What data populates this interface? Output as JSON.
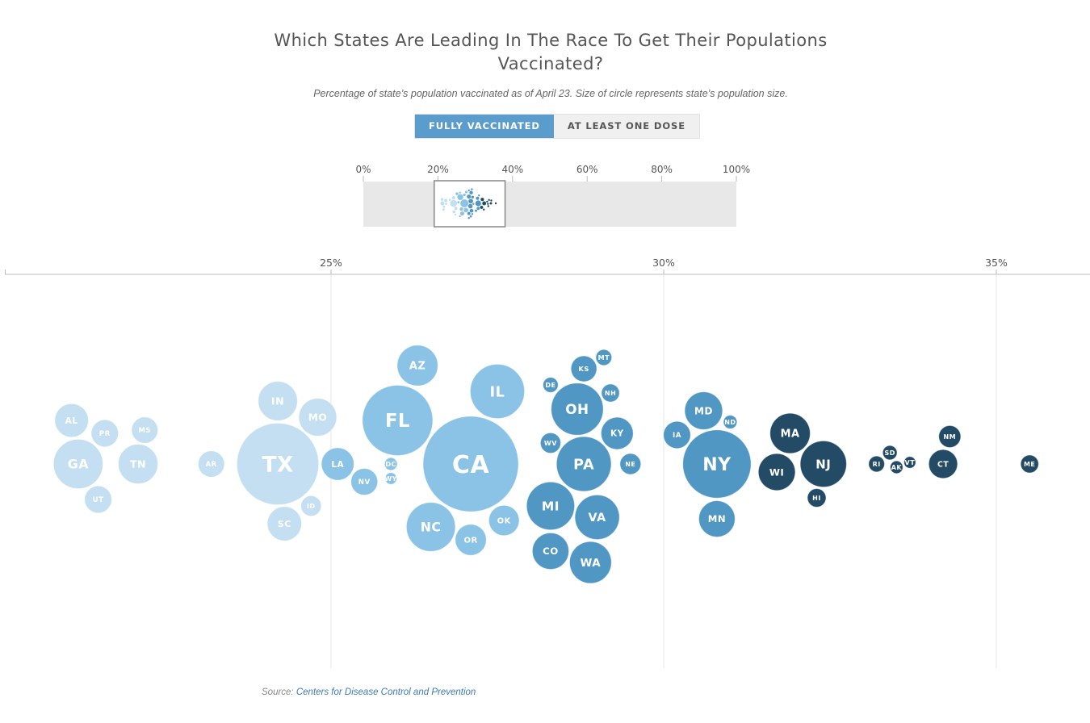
{
  "title": "Which States Are Leading In The Race To Get Their Populations Vaccinated?",
  "subtitle": "Percentage of state’s population vaccinated as of April 23. Size of circle represents state’s population size.",
  "toggle": {
    "active_label": "FULLY VACCINATED",
    "inactive_label": "AT LEAST ONE DOSE"
  },
  "source": {
    "label": "Source:",
    "link_text": "Centers for Disease Control and Prevention"
  },
  "colors": {
    "light": "#c3dff1",
    "medium": "#8bc3e6",
    "dark": "#5197c4",
    "darkest": "#244b66",
    "brush_bg": "#e8e8e8",
    "axis": "#bbbbbb",
    "grid": "#e6e6e6"
  },
  "overview_axis": {
    "ticks": [
      "0%",
      "20%",
      "40%",
      "60%",
      "80%",
      "100%"
    ],
    "brush_range": [
      19,
      38
    ]
  },
  "chart_data": {
    "type": "scatter",
    "x_axis": {
      "range": [
        20.1,
        36.4
      ],
      "ticks": [
        25,
        30,
        35
      ],
      "tick_labels": [
        "25%",
        "30%",
        "35%"
      ]
    },
    "points": [
      {
        "state": "GA",
        "value": 21.2,
        "pop": 10.6
      },
      {
        "state": "MS",
        "value": 22.2,
        "pop": 3.0
      },
      {
        "state": "AL",
        "value": 21.1,
        "pop": 4.9
      },
      {
        "state": "PR",
        "value": 21.6,
        "pop": 3.2
      },
      {
        "state": "TN",
        "value": 22.1,
        "pop": 6.8
      },
      {
        "state": "UT",
        "value": 21.5,
        "pop": 3.2
      },
      {
        "state": "AR",
        "value": 23.2,
        "pop": 3.0
      },
      {
        "state": "TX",
        "value": 24.2,
        "pop": 29.0
      },
      {
        "state": "ID",
        "value": 24.7,
        "pop": 1.8
      },
      {
        "state": "SC",
        "value": 24.3,
        "pop": 5.1
      },
      {
        "state": "IN",
        "value": 24.2,
        "pop": 6.7
      },
      {
        "state": "MO",
        "value": 24.8,
        "pop": 6.2
      },
      {
        "state": "LA",
        "value": 25.1,
        "pop": 4.6
      },
      {
        "state": "NV",
        "value": 25.5,
        "pop": 3.1
      },
      {
        "state": "WY",
        "value": 25.9,
        "pop": 0.6
      },
      {
        "state": "DC",
        "value": 25.9,
        "pop": 0.7
      },
      {
        "state": "FL",
        "value": 26.0,
        "pop": 21.5
      },
      {
        "state": "CA",
        "value": 27.1,
        "pop": 39.5
      },
      {
        "state": "AZ",
        "value": 26.3,
        "pop": 7.2
      },
      {
        "state": "OR",
        "value": 27.1,
        "pop": 4.2
      },
      {
        "state": "NC",
        "value": 26.5,
        "pop": 10.4
      },
      {
        "state": "IL",
        "value": 27.5,
        "pop": 12.8
      },
      {
        "state": "OK",
        "value": 27.6,
        "pop": 4.0
      },
      {
        "state": "DE",
        "value": 28.3,
        "pop": 1.0
      },
      {
        "state": "MI",
        "value": 28.3,
        "pop": 10.0
      },
      {
        "state": "VA",
        "value": 29.0,
        "pop": 8.6
      },
      {
        "state": "PA",
        "value": 28.8,
        "pop": 13.0
      },
      {
        "state": "KY",
        "value": 29.3,
        "pop": 4.5
      },
      {
        "state": "CO",
        "value": 28.3,
        "pop": 5.8
      },
      {
        "state": "KS",
        "value": 28.8,
        "pop": 2.9
      },
      {
        "state": "MT",
        "value": 29.1,
        "pop": 1.1
      },
      {
        "state": "NE",
        "value": 29.5,
        "pop": 1.9
      },
      {
        "state": "WV",
        "value": 28.3,
        "pop": 1.8
      },
      {
        "state": "NH",
        "value": 29.2,
        "pop": 1.4
      },
      {
        "state": "OH",
        "value": 28.7,
        "pop": 11.8
      },
      {
        "state": "WA",
        "value": 28.9,
        "pop": 7.6
      },
      {
        "state": "IA",
        "value": 30.2,
        "pop": 3.2
      },
      {
        "state": "MN",
        "value": 30.8,
        "pop": 5.7
      },
      {
        "state": "MD",
        "value": 30.6,
        "pop": 6.2
      },
      {
        "state": "ND",
        "value": 31.0,
        "pop": 0.8
      },
      {
        "state": "NY",
        "value": 30.8,
        "pop": 20.2
      },
      {
        "state": "MA",
        "value": 31.9,
        "pop": 7.0
      },
      {
        "state": "WI",
        "value": 31.7,
        "pop": 5.9
      },
      {
        "state": "NJ",
        "value": 32.4,
        "pop": 9.3
      },
      {
        "state": "HI",
        "value": 32.3,
        "pop": 1.5
      },
      {
        "state": "VT",
        "value": 33.7,
        "pop": 0.6
      },
      {
        "state": "RI",
        "value": 33.2,
        "pop": 1.1
      },
      {
        "state": "AK",
        "value": 33.5,
        "pop": 0.7
      },
      {
        "state": "SD",
        "value": 33.4,
        "pop": 0.9
      },
      {
        "state": "CT",
        "value": 34.2,
        "pop": 3.6
      },
      {
        "state": "NM",
        "value": 34.3,
        "pop": 2.1
      },
      {
        "state": "ME",
        "value": 35.5,
        "pop": 1.4
      }
    ]
  }
}
